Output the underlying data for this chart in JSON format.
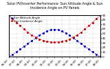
{
  "title": "Solar PV/Inverter Performance: Sun Altitude Angle & Sun Incidence Angle on PV Panels",
  "legend": [
    "Sun Altitude Angle",
    "Sun Incidence Angle"
  ],
  "line_colors": [
    "#0000cc",
    "#cc0000"
  ],
  "x_values": [
    6,
    6.5,
    7,
    7.5,
    8,
    8.5,
    9,
    9.5,
    10,
    10.5,
    11,
    11.5,
    12,
    12.5,
    13,
    13.5,
    14,
    14.5,
    15,
    15.5,
    16,
    16.5,
    17,
    17.5,
    18
  ],
  "altitude_values": [
    0,
    5,
    10,
    16,
    22,
    28,
    34,
    40,
    46,
    51,
    55,
    58,
    59,
    58,
    55,
    51,
    46,
    40,
    34,
    28,
    22,
    16,
    10,
    5,
    0
  ],
  "incidence_values": [
    90,
    82,
    74,
    67,
    60,
    53,
    47,
    42,
    38,
    35,
    33,
    32,
    31,
    32,
    33,
    35,
    38,
    42,
    47,
    53,
    60,
    67,
    74,
    82,
    90
  ],
  "ylim": [
    0,
    90
  ],
  "xlim": [
    6,
    18
  ],
  "yticks": [
    0,
    10,
    20,
    30,
    40,
    50,
    60,
    70,
    80,
    90
  ],
  "xticks": [
    6,
    7,
    8,
    9,
    10,
    11,
    12,
    13,
    14,
    15,
    16,
    17,
    18
  ],
  "background_color": "#ffffff",
  "grid_color": "#aaaaaa",
  "title_fontsize": 3.5,
  "legend_fontsize": 3.0,
  "tick_fontsize": 3.0
}
